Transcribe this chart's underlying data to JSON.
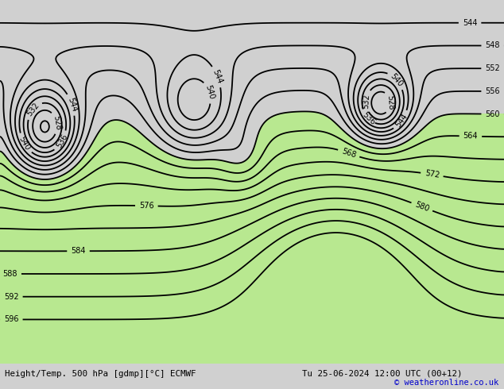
{
  "title_left": "Height/Temp. 500 hPa [gdmp][°C] ECMWF",
  "title_right": "Tu 25-06-2024 12:00 UTC (00+12)",
  "copyright": "© weatheronline.co.uk",
  "bg_color": "#d0d0d0",
  "ocean_color": "#d0d0d0",
  "land_color": "#c0c0c0",
  "green_fill_color": "#b8e890",
  "bottom_bar_color": "#e0e0e0",
  "figsize": [
    6.34,
    4.9
  ],
  "dpi": 100
}
